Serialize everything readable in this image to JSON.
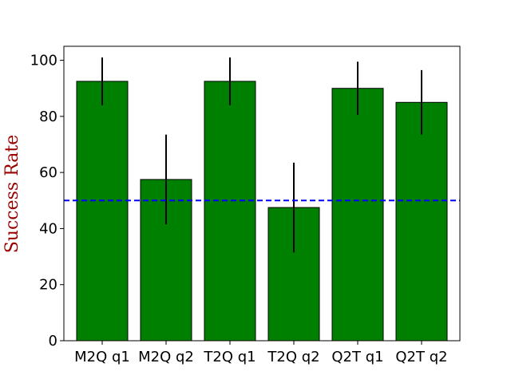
{
  "chart_data": {
    "type": "bar",
    "title": "",
    "xlabel": "",
    "ylabel": "Success Rate",
    "categories": [
      "M2Q q1",
      "M2Q q2",
      "T2Q q1",
      "T2Q q2",
      "Q2T q1",
      "Q2T q2"
    ],
    "values": [
      92.5,
      57.5,
      92.5,
      47.5,
      90.0,
      85.0
    ],
    "errors": [
      8.5,
      16.0,
      8.5,
      16.0,
      9.5,
      11.5
    ],
    "ylim": [
      0,
      105
    ],
    "yticks": [
      0,
      20,
      40,
      60,
      80,
      100
    ],
    "reference_line": {
      "y": 50,
      "color": "#0000ff",
      "style": "dashed"
    },
    "colors": {
      "bar_fill": "#008000",
      "bar_edge": "#000000",
      "error_bar": "#000000",
      "ylabel": "#990000"
    },
    "grid": false,
    "legend": "none"
  }
}
